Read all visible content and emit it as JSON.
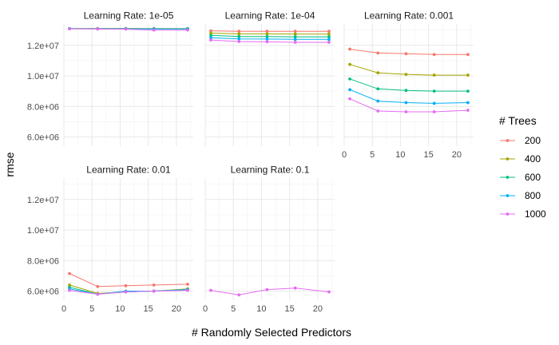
{
  "chart_data": {
    "type": "line",
    "xlabel": "# Randomly Selected Predictors",
    "ylabel": "rmse",
    "xlim": [
      0,
      23
    ],
    "ylim": [
      5400000,
      13400000
    ],
    "x_ticks": [
      0,
      5,
      10,
      15,
      20
    ],
    "x_tick_labels": [
      "0",
      "5",
      "10",
      "15",
      "20"
    ],
    "y_ticks": [
      6000000,
      8000000,
      10000000,
      12000000
    ],
    "y_tick_labels": [
      "6.0e+06",
      "8.0e+06",
      "1.0e+07",
      "1.2e+07"
    ],
    "grid": true,
    "legend": {
      "title": "# Trees",
      "placement": "right",
      "entries": [
        {
          "label": "200",
          "color": "#F8766D"
        },
        {
          "label": "400",
          "color": "#A3A500"
        },
        {
          "label": "600",
          "color": "#00BF7D"
        },
        {
          "label": "800",
          "color": "#00B0F6"
        },
        {
          "label": "1000",
          "color": "#E76BF3"
        }
      ]
    },
    "x": [
      1,
      6,
      11,
      16,
      22
    ],
    "panels": [
      {
        "title": "Learning Rate: 1e-05",
        "series": [
          {
            "trees": "200",
            "values": [
              13100000,
              13100000,
              13100000,
              13100000,
              13100000
            ]
          },
          {
            "trees": "400",
            "values": [
              13100000,
              13100000,
              13100000,
              13090000,
              13090000
            ]
          },
          {
            "trees": "600",
            "values": [
              13100000,
              13090000,
              13090000,
              13080000,
              13080000
            ]
          },
          {
            "trees": "800",
            "values": [
              13090000,
              13080000,
              13080000,
              13070000,
              13070000
            ]
          },
          {
            "trees": "1000",
            "values": [
              13080000,
              13070000,
              13060000,
              13000000,
              13000000
            ]
          }
        ]
      },
      {
        "title": "Learning Rate: 1e-04",
        "series": [
          {
            "trees": "200",
            "values": [
              12950000,
              12920000,
              12920000,
              12920000,
              12920000
            ]
          },
          {
            "trees": "400",
            "values": [
              12800000,
              12750000,
              12750000,
              12740000,
              12740000
            ]
          },
          {
            "trees": "600",
            "values": [
              12650000,
              12580000,
              12580000,
              12560000,
              12560000
            ]
          },
          {
            "trees": "800",
            "values": [
              12500000,
              12420000,
              12410000,
              12390000,
              12390000
            ]
          },
          {
            "trees": "1000",
            "values": [
              12350000,
              12250000,
              12230000,
              12200000,
              12200000
            ]
          }
        ]
      },
      {
        "title": "Learning Rate: 0.001",
        "series": [
          {
            "trees": "200",
            "values": [
              11750000,
              11500000,
              11450000,
              11400000,
              11400000
            ]
          },
          {
            "trees": "400",
            "values": [
              10750000,
              10200000,
              10100000,
              10050000,
              10050000
            ]
          },
          {
            "trees": "600",
            "values": [
              9800000,
              9150000,
              9050000,
              9000000,
              9000000
            ]
          },
          {
            "trees": "800",
            "values": [
              9100000,
              8350000,
              8250000,
              8200000,
              8250000
            ]
          },
          {
            "trees": "1000",
            "values": [
              8500000,
              7700000,
              7650000,
              7650000,
              7750000
            ]
          }
        ]
      },
      {
        "title": "Learning Rate: 0.01",
        "series": [
          {
            "trees": "200",
            "values": [
              7150000,
              6300000,
              6350000,
              6400000,
              6450000
            ]
          },
          {
            "trees": "400",
            "values": [
              6400000,
              5850000,
              5950000,
              6000000,
              6150000
            ]
          },
          {
            "trees": "600",
            "values": [
              6250000,
              5800000,
              5950000,
              6000000,
              6100000
            ]
          },
          {
            "trees": "800",
            "values": [
              6150000,
              5800000,
              6000000,
              6000000,
              6100000
            ]
          },
          {
            "trees": "1000",
            "values": [
              6050000,
              5800000,
              5950000,
              6000000,
              6050000
            ]
          }
        ]
      },
      {
        "title": "Learning Rate: 0.1",
        "series": [
          {
            "trees": "1000",
            "values": [
              6050000,
              5750000,
              6100000,
              6200000,
              5950000
            ]
          }
        ]
      }
    ]
  }
}
